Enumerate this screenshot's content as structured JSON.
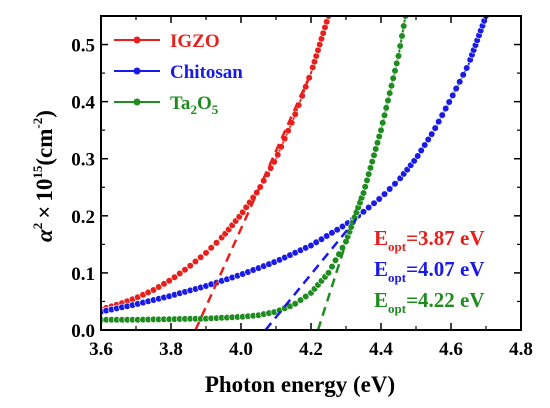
{
  "chart_data": {
    "type": "line",
    "xlabel": "Photon energy (eV)",
    "ylabel": {
      "alpha": "α",
      "sq": "2",
      "times": "×",
      "ten": "10",
      "exp": "15",
      "unit": "(cm",
      "unit_exp": "-2",
      "close": ")"
    },
    "xlim": [
      3.6,
      4.8
    ],
    "ylim": [
      0.0,
      0.55
    ],
    "x_ticks": [
      "3.6",
      "3.8",
      "4.0",
      "4.2",
      "4.4",
      "4.6",
      "4.8"
    ],
    "y_ticks": [
      "0.0",
      "0.1",
      "0.2",
      "0.3",
      "0.4",
      "0.5"
    ],
    "series": [
      {
        "name": "IGZO",
        "name_parts": [
          "IGZO"
        ],
        "color": "#e8201c",
        "x": [
          3.6,
          3.65,
          3.7,
          3.75,
          3.8,
          3.85,
          3.9,
          3.95,
          4.0,
          4.05,
          4.1,
          4.15,
          4.2,
          4.25
        ],
        "y": [
          0.036,
          0.045,
          0.056,
          0.07,
          0.088,
          0.11,
          0.135,
          0.165,
          0.202,
          0.245,
          0.3,
          0.37,
          0.45,
          0.55
        ]
      },
      {
        "name": "Chitosan",
        "name_parts": [
          "Chitosan"
        ],
        "color": "#1a1ae6",
        "x": [
          3.6,
          3.7,
          3.8,
          3.9,
          4.0,
          4.1,
          4.2,
          4.3,
          4.35,
          4.4,
          4.45,
          4.5,
          4.55,
          4.6,
          4.65,
          4.7
        ],
        "y": [
          0.032,
          0.045,
          0.06,
          0.077,
          0.097,
          0.12,
          0.148,
          0.185,
          0.207,
          0.232,
          0.262,
          0.3,
          0.348,
          0.405,
          0.465,
          0.55
        ]
      },
      {
        "name": "Ta2O5",
        "name_parts": [
          "Ta",
          "2",
          "O",
          "5"
        ],
        "color": "#1e8c1e",
        "x": [
          3.6,
          3.7,
          3.8,
          3.9,
          4.0,
          4.05,
          4.1,
          4.15,
          4.2,
          4.25,
          4.3,
          4.35,
          4.4,
          4.45,
          4.47
        ],
        "y": [
          0.018,
          0.018,
          0.019,
          0.02,
          0.023,
          0.026,
          0.032,
          0.044,
          0.065,
          0.1,
          0.155,
          0.24,
          0.35,
          0.48,
          0.55
        ]
      }
    ],
    "tangent_lines": [
      {
        "color": "#e8201c",
        "x": [
          3.87,
          4.2
        ],
        "y": [
          0.0,
          0.45
        ]
      },
      {
        "color": "#1a1ae6",
        "x": [
          4.07,
          4.33
        ],
        "y": [
          0.0,
          0.195
        ]
      },
      {
        "color": "#1e8c1e",
        "x": [
          4.22,
          4.34
        ],
        "y": [
          0.0,
          0.23
        ]
      }
    ],
    "annotations": [
      {
        "label": "E",
        "sub": "opt",
        "value": "=3.87 eV",
        "color": "#e8201c"
      },
      {
        "label": "E",
        "sub": "opt",
        "value": "=4.07 eV",
        "color": "#1a1ae6"
      },
      {
        "label": "E",
        "sub": "opt",
        "value": "=4.22 eV",
        "color": "#1e8c1e"
      }
    ],
    "legend_position": "top-left",
    "grid": false
  }
}
